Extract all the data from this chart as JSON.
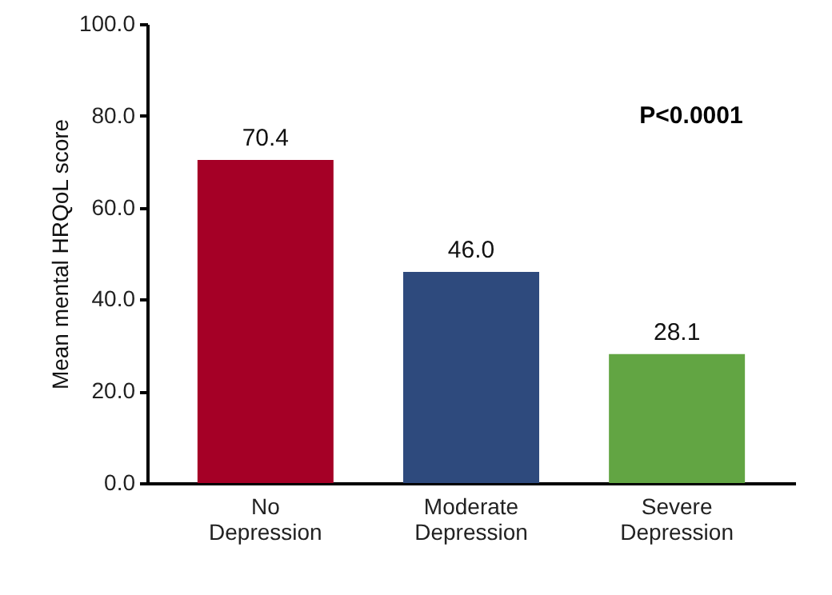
{
  "chart_data": {
    "type": "bar",
    "ylabel": "Mean mental HRQoL score",
    "categories": [
      "No Depression",
      "Moderate Depression",
      "Severe Depression"
    ],
    "values": [
      70.4,
      46.0,
      28.1
    ],
    "colors": [
      "#a50026",
      "#2e4a7d",
      "#62a543"
    ],
    "value_labels": [
      "70.4",
      "46.0",
      "28.1"
    ],
    "ylim": [
      0,
      100
    ],
    "yticks": [
      {
        "value": 0,
        "label": "0.0"
      },
      {
        "value": 20,
        "label": "20.0"
      },
      {
        "value": 40,
        "label": "40.0"
      },
      {
        "value": 60,
        "label": "60.0"
      },
      {
        "value": 80,
        "label": "80.0"
      },
      {
        "value": 100,
        "label": "100.0"
      }
    ],
    "annotations": [
      "P<0.0001"
    ],
    "grid": false
  }
}
